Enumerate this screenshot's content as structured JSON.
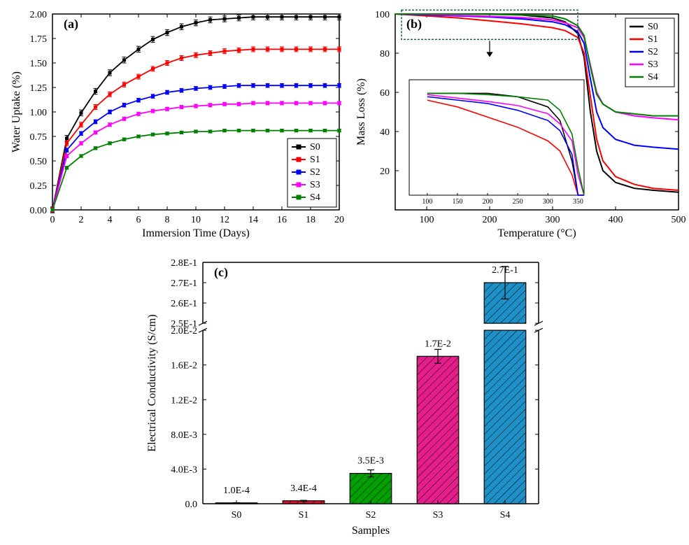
{
  "panel_a": {
    "label": "(a)",
    "type": "line_scatter",
    "xlabel": "Immersion Time (Days)",
    "ylabel": "Water Uptake (%)",
    "xlim": [
      0,
      20
    ],
    "ylim": [
      0.0,
      2.0
    ],
    "xticks": [
      0,
      2,
      4,
      6,
      8,
      10,
      12,
      14,
      16,
      18,
      20
    ],
    "yticks": [
      0.0,
      0.25,
      0.5,
      0.75,
      1.0,
      1.25,
      1.5,
      1.75,
      2.0
    ],
    "series": [
      {
        "name": "S0",
        "color": "#000000",
        "x": [
          0,
          1,
          2,
          3,
          4,
          5,
          6,
          7,
          8,
          9,
          10,
          11,
          12,
          13,
          14,
          15,
          16,
          17,
          18,
          19,
          20
        ],
        "y": [
          0,
          0.73,
          0.99,
          1.21,
          1.4,
          1.53,
          1.64,
          1.74,
          1.81,
          1.87,
          1.91,
          1.94,
          1.95,
          1.96,
          1.97,
          1.97,
          1.97,
          1.97,
          1.97,
          1.97,
          1.97
        ],
        "err": 0.03
      },
      {
        "name": "S1",
        "color": "#ff0000",
        "x": [
          0,
          1,
          2,
          3,
          4,
          5,
          6,
          7,
          8,
          9,
          10,
          11,
          12,
          13,
          14,
          15,
          16,
          17,
          18,
          19,
          20
        ],
        "y": [
          0,
          0.68,
          0.87,
          1.05,
          1.18,
          1.28,
          1.36,
          1.44,
          1.5,
          1.55,
          1.58,
          1.6,
          1.62,
          1.63,
          1.64,
          1.64,
          1.64,
          1.64,
          1.64,
          1.64,
          1.64
        ],
        "err": 0.025
      },
      {
        "name": "S2",
        "color": "#0000ff",
        "x": [
          0,
          1,
          2,
          3,
          4,
          5,
          6,
          7,
          8,
          9,
          10,
          11,
          12,
          13,
          14,
          15,
          16,
          17,
          18,
          19,
          20
        ],
        "y": [
          0,
          0.61,
          0.78,
          0.9,
          1.0,
          1.07,
          1.12,
          1.16,
          1.2,
          1.22,
          1.24,
          1.25,
          1.26,
          1.27,
          1.27,
          1.27,
          1.27,
          1.27,
          1.27,
          1.27,
          1.27
        ],
        "err": 0.02
      },
      {
        "name": "S3",
        "color": "#ff00ff",
        "x": [
          0,
          1,
          2,
          3,
          4,
          5,
          6,
          7,
          8,
          9,
          10,
          11,
          12,
          13,
          14,
          15,
          16,
          17,
          18,
          19,
          20
        ],
        "y": [
          0,
          0.55,
          0.68,
          0.79,
          0.87,
          0.93,
          0.98,
          1.01,
          1.03,
          1.05,
          1.06,
          1.07,
          1.08,
          1.08,
          1.09,
          1.09,
          1.09,
          1.09,
          1.09,
          1.09,
          1.09
        ],
        "err": 0.018
      },
      {
        "name": "S4",
        "color": "#008000",
        "x": [
          0,
          1,
          2,
          3,
          4,
          5,
          6,
          7,
          8,
          9,
          10,
          11,
          12,
          13,
          14,
          15,
          16,
          17,
          18,
          19,
          20
        ],
        "y": [
          0,
          0.43,
          0.55,
          0.63,
          0.68,
          0.72,
          0.75,
          0.77,
          0.78,
          0.79,
          0.8,
          0.8,
          0.81,
          0.81,
          0.81,
          0.81,
          0.81,
          0.81,
          0.81,
          0.81,
          0.81
        ],
        "err": 0.015
      }
    ],
    "legend_pos": "bottom-right",
    "marker": "square",
    "marker_size": 4,
    "line_width": 1.8,
    "tick_fontsize": 14,
    "label_fontsize": 16
  },
  "panel_b": {
    "label": "(b)",
    "type": "line",
    "xlabel": "Temperature (°C)",
    "ylabel": "Mass Loss (%)",
    "xlim": [
      50,
      500
    ],
    "ylim": [
      0,
      100
    ],
    "xticks": [
      100,
      200,
      300,
      400,
      500
    ],
    "yticks": [
      20,
      40,
      60,
      80,
      100
    ],
    "series": [
      {
        "name": "S0",
        "color": "#000000",
        "x": [
          50,
          100,
          150,
          200,
          250,
          300,
          320,
          340,
          350,
          360,
          370,
          380,
          400,
          430,
          460,
          500
        ],
        "y": [
          100,
          100,
          100,
          100,
          99.5,
          98,
          96,
          90,
          78,
          50,
          30,
          20,
          14,
          11,
          10,
          9
        ]
      },
      {
        "name": "S1",
        "color": "#ff0000",
        "x": [
          50,
          100,
          150,
          200,
          250,
          300,
          320,
          340,
          350,
          360,
          370,
          380,
          400,
          430,
          460,
          500
        ],
        "y": [
          100,
          99,
          98,
          96.5,
          95,
          93,
          91.5,
          88,
          80,
          58,
          36,
          25,
          17,
          13,
          11,
          10
        ]
      },
      {
        "name": "S2",
        "color": "#0000ff",
        "x": [
          50,
          100,
          150,
          200,
          250,
          300,
          320,
          340,
          350,
          360,
          370,
          380,
          400,
          430,
          460,
          500
        ],
        "y": [
          100,
          99.5,
          99,
          98.5,
          97.5,
          96,
          94.5,
          91,
          85,
          67,
          50,
          42,
          36,
          33,
          32,
          31
        ]
      },
      {
        "name": "S3",
        "color": "#ff00ff",
        "x": [
          50,
          100,
          150,
          200,
          250,
          300,
          320,
          340,
          350,
          360,
          370,
          380,
          400,
          430,
          460,
          500
        ],
        "y": [
          100,
          99.8,
          99.3,
          98.8,
          98.2,
          97,
          95.5,
          93,
          88,
          74,
          60,
          54,
          50,
          48,
          47,
          46
        ]
      },
      {
        "name": "S4",
        "color": "#008000",
        "x": [
          50,
          100,
          150,
          200,
          250,
          300,
          320,
          340,
          350,
          360,
          370,
          380,
          400,
          430,
          460,
          500
        ],
        "y": [
          100,
          100,
          100,
          99.8,
          99.5,
          99,
          97.5,
          94,
          89,
          73,
          59,
          54,
          50,
          49,
          48,
          48
        ]
      }
    ],
    "inset": {
      "xlim": [
        70,
        360
      ],
      "ylim": [
        40,
        70
      ],
      "box_stroke": "#1a5a4a",
      "box_dash": "3,2",
      "outer_region": {
        "x": [
          60,
          340
        ],
        "y": [
          87,
          102
        ]
      }
    },
    "legend_pos": "top-right",
    "line_width": 2,
    "tick_fontsize": 14,
    "label_fontsize": 16
  },
  "panel_c": {
    "label": "(c)",
    "type": "bar_broken_axis",
    "xlabel": "Samples",
    "ylabel": "Electrical Conductivity (S/cm)",
    "categories": [
      "S0",
      "S1",
      "S2",
      "S3",
      "S4"
    ],
    "values": [
      0.0001,
      0.00034,
      0.0035,
      0.017,
      0.27
    ],
    "value_labels": [
      "1.0E-4",
      "3.4E-4",
      "3.5E-3",
      "1.7E-2",
      "2.7E-1"
    ],
    "errors": [
      2e-05,
      5e-05,
      0.0004,
      0.0008,
      0.008
    ],
    "bar_colors": [
      "#4a4a4a",
      "#e01030",
      "#00a000",
      "#e61e8c",
      "#1e90c8"
    ],
    "hatch": "diagonal",
    "lower": {
      "ylim": [
        0,
        0.02
      ],
      "yticks": [
        0,
        0.004,
        0.008,
        0.012,
        0.016,
        0.02
      ],
      "ytick_labels": [
        "0.0",
        "4.0E-3",
        "8.0E-3",
        "1.2E-2",
        "1.6E-2",
        "2.0E-2"
      ]
    },
    "upper": {
      "ylim": [
        0.25,
        0.28
      ],
      "yticks": [
        0.25,
        0.26,
        0.27,
        0.28
      ],
      "ytick_labels": [
        "2.5E-1",
        "2.6E-1",
        "2.7E-1",
        "2.8E-1"
      ]
    },
    "bar_width": 0.62,
    "tick_fontsize": 14,
    "label_fontsize": 16
  },
  "colors": {
    "background": "#ffffff",
    "axis": "#000000"
  }
}
